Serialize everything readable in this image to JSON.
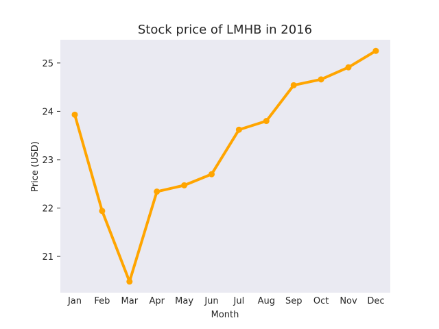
{
  "chart_data": {
    "type": "line",
    "title": "Stock price of LMHB in 2016",
    "xlabel": "Month",
    "ylabel": "Price (USD)",
    "categories": [
      "Jan",
      "Feb",
      "Mar",
      "Apr",
      "May",
      "Jun",
      "Jul",
      "Aug",
      "Sep",
      "Oct",
      "Nov",
      "Dec"
    ],
    "series": [
      {
        "values": [
          23.93,
          21.94,
          20.48,
          22.34,
          22.47,
          22.7,
          23.62,
          23.8,
          24.54,
          24.66,
          24.91,
          25.25
        ],
        "color": "#FFA500"
      }
    ],
    "ylim": [
      20.25,
      25.48
    ],
    "yticks": [
      21,
      22,
      23,
      24,
      25
    ],
    "grid": false,
    "background": "#EAEAF2"
  }
}
